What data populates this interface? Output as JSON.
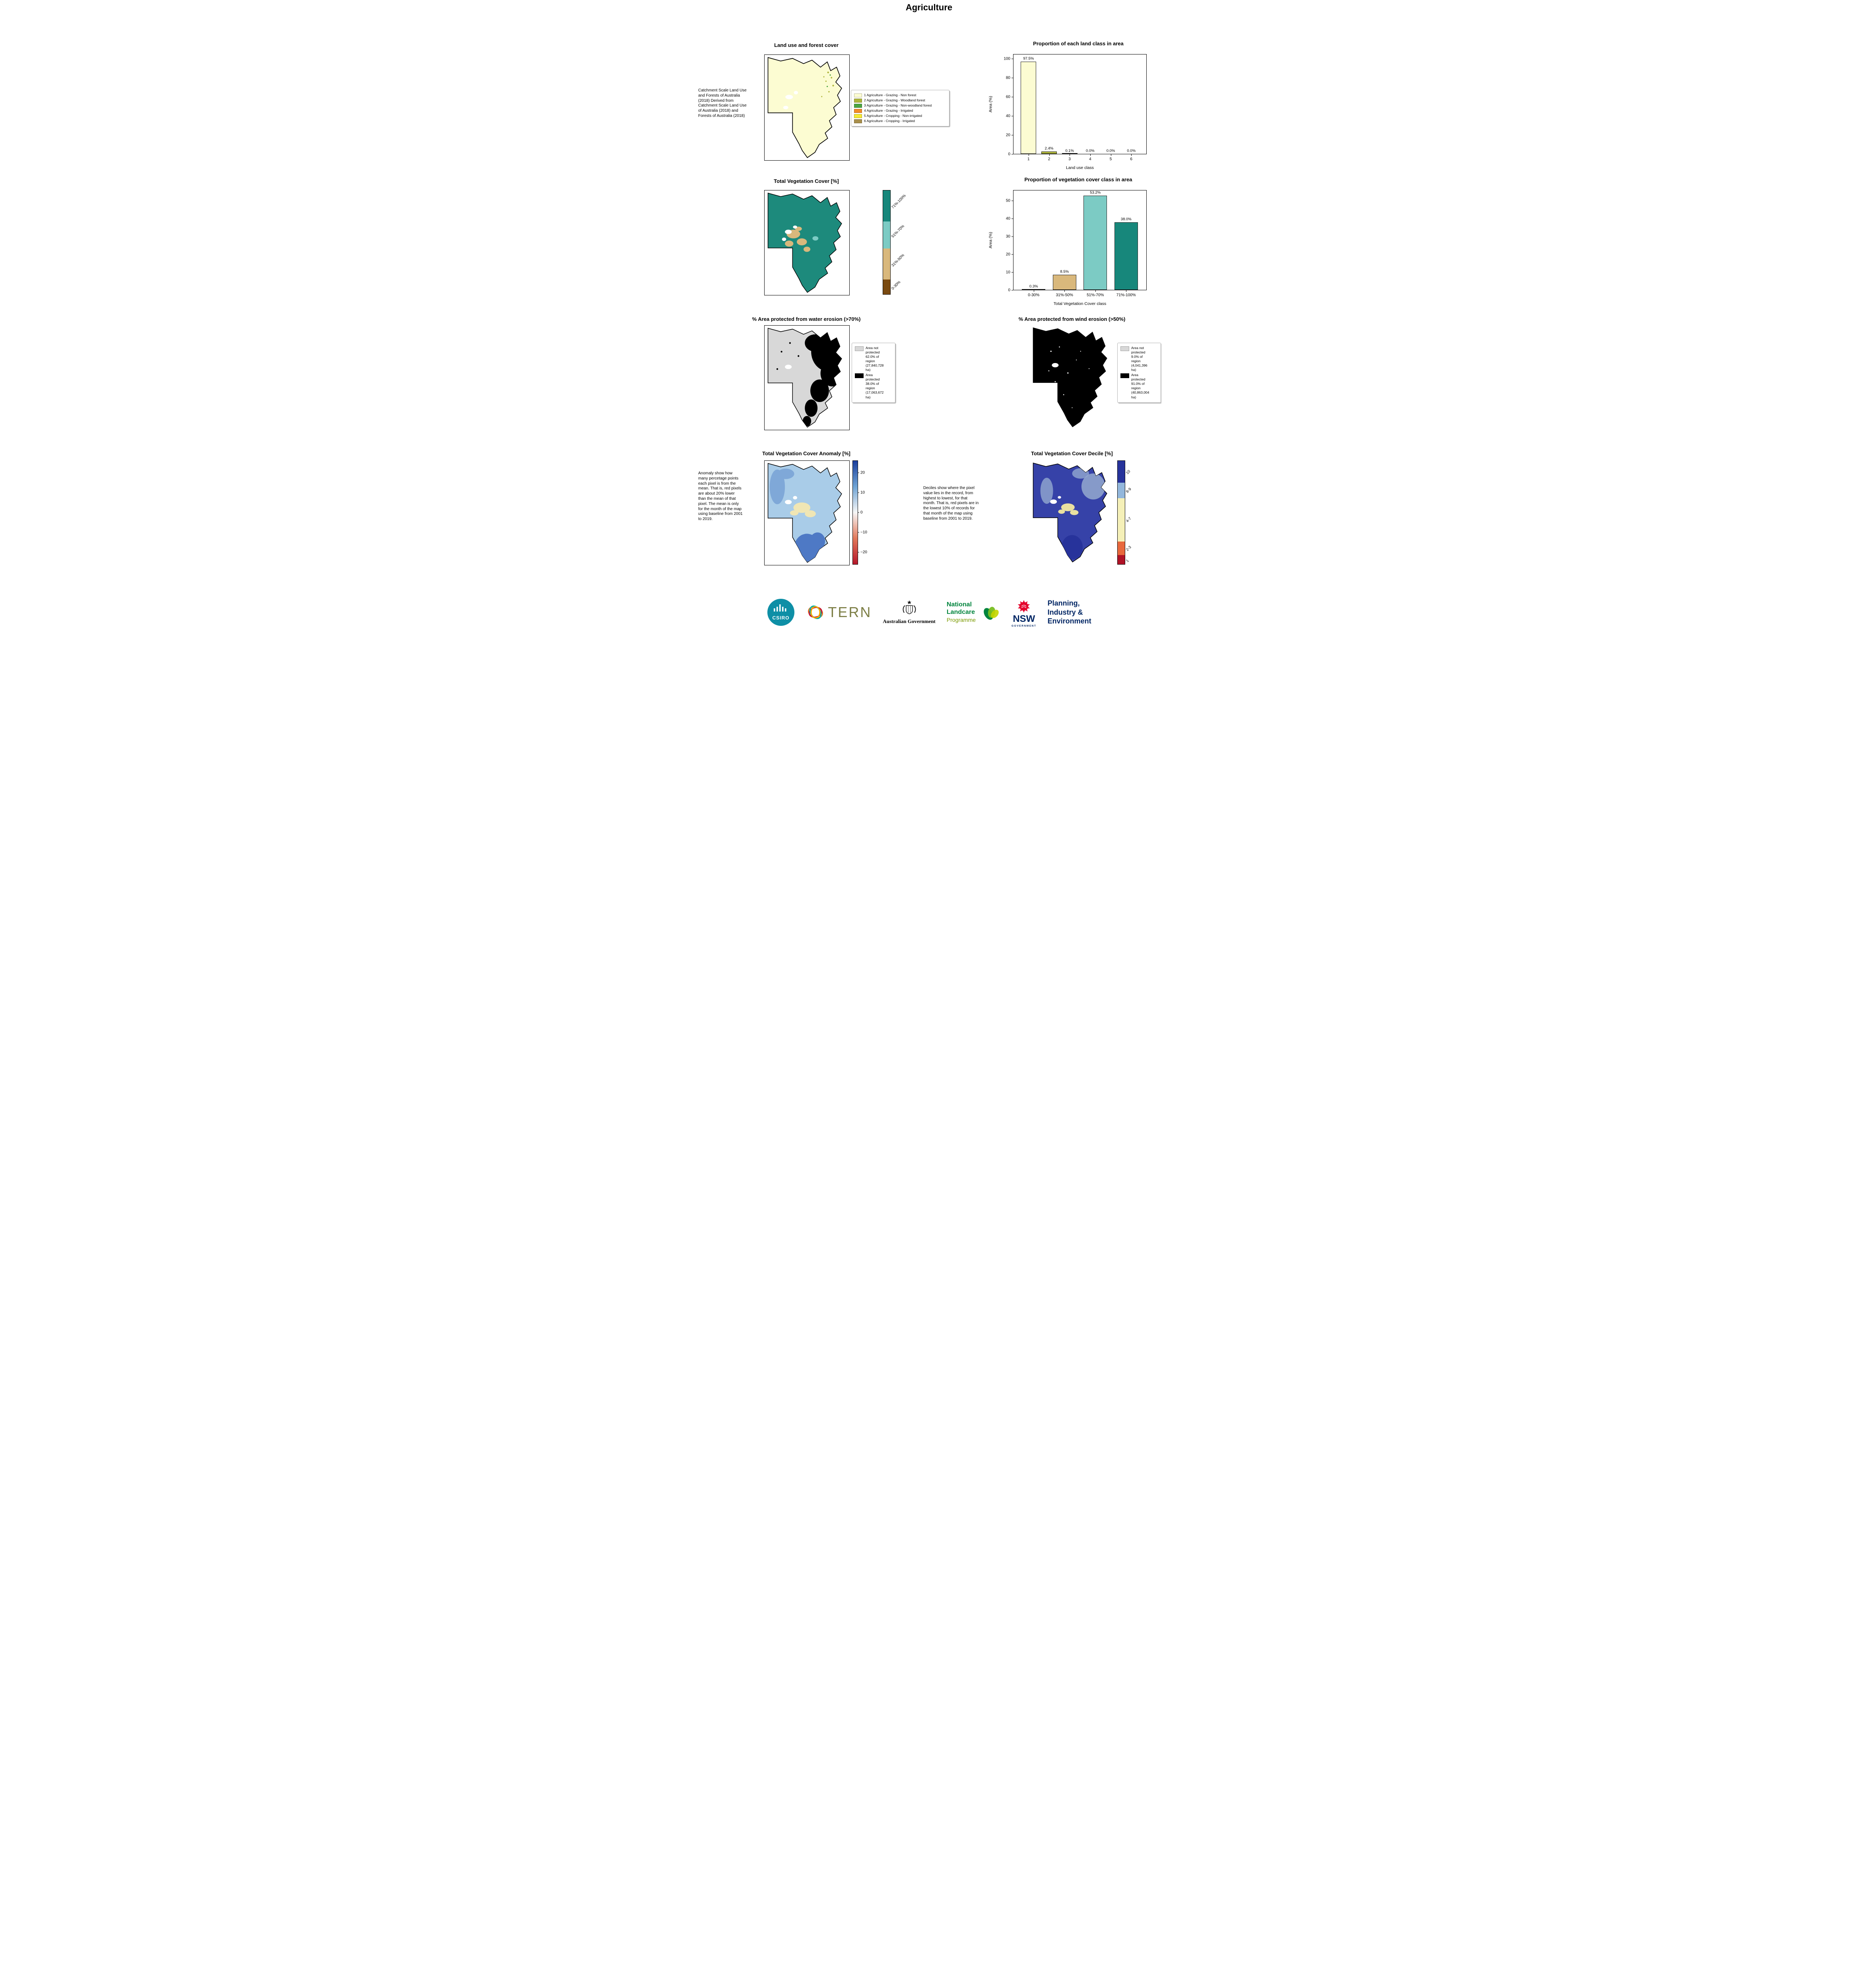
{
  "page": {
    "title": "Agriculture"
  },
  "panels": {
    "land_use_map": {
      "title": "Land use and forest cover",
      "caption": "Catchment Scale Land Use and Forests of Australia (2018) Derived from Catchment Scale Land Use of Australia (2018) and Forests of Australia (2018)",
      "legend": [
        {
          "color": "#FCFCD2",
          "label": "1 Agriculture - Grazing - Non forest"
        },
        {
          "color": "#AFB63C",
          "label": "2 Agriculture - Grazing - Woodland forest"
        },
        {
          "color": "#4CA540",
          "label": "3 Agriculture - Grazing - Non-woodland forest"
        },
        {
          "color": "#F28C28",
          "label": "4 Agriculture - Grazing - Irrigated"
        },
        {
          "color": "#F5E933",
          "label": "5 Agriculture - Cropping - Non-irrigated"
        },
        {
          "color": "#A98F4C",
          "label": "6 Agriculture - Cropping - Irrigated"
        }
      ]
    },
    "veg_cover_map": {
      "title": "Total Vegetation Cover [%]",
      "base_color": "#1D8A7C",
      "colorbar": [
        {
          "color": "#7A4A10",
          "label": "0-30%",
          "size": 14
        },
        {
          "color": "#D9B87C",
          "label": "31%-50%",
          "size": 30
        },
        {
          "color": "#7CCBC4",
          "label": "51%-70%",
          "size": 26
        },
        {
          "color": "#17877B",
          "label": "71%-100%",
          "size": 30
        }
      ]
    },
    "water_erosion_map": {
      "title": "% Area protected from water erosion (>70%)",
      "legend": [
        {
          "color": "#D8D8D8",
          "label": "Area not protected 62.0% of region (27,840,728 ha)"
        },
        {
          "color": "#000000",
          "label": "Area protected 38.0% of region (17,063,672 ha)"
        }
      ]
    },
    "wind_erosion_map": {
      "title": "% Area protected from wind erosion (>50%)",
      "legend": [
        {
          "color": "#D8D8D8",
          "label": "Area not protected 9.0% of region (4,041,396 ha)"
        },
        {
          "color": "#000000",
          "label": "Area protected 91.0% of region (40,863,004 ha)"
        }
      ]
    },
    "anomaly_map": {
      "title": "Total Vegetation Cover Anomaly [%]",
      "caption": "Anomaly show how many percetage points each pixel is from the mean. That is, red pixels are about 20% lower than the mean of that pixel. The mean is only for the month of the map using baseline from 2001 to 2019.",
      "base_color": "#A9CCE8",
      "patch_yellow": "#F0E6B4",
      "patch_blue": "#4E79C5",
      "patch_midblue": "#7FA8D8",
      "colorbar": {
        "gradient": [
          "#1A3E9C",
          "#6FA3D4",
          "#F7F7F7",
          "#E2795B",
          "#B5182B"
        ],
        "range": [
          -26,
          26
        ],
        "ticks": [
          {
            "value": 20,
            "label": "20"
          },
          {
            "value": 10,
            "label": "10"
          },
          {
            "value": 0,
            "label": "0"
          },
          {
            "value": -10,
            "label": "−10"
          },
          {
            "value": -20,
            "label": "−20"
          }
        ]
      }
    },
    "decile_map": {
      "title": "Total Vegetation Cover Decile [%]",
      "caption": "Deciles show where the pixel value lies in the record, from highest to lowest, for that month. That is, red pixels are in the lowest 10% of records for that month of the map using baseline from 2001 to 2019.",
      "base_color": "#3642A8",
      "patch_light": "#94A9CF",
      "patch_yellow": "#E9E0A0",
      "patch_dark": "#27339B",
      "colorbar": [
        {
          "color": "#B01326",
          "label": "1",
          "size": 9
        },
        {
          "color": "#E8683C",
          "label": "2-3",
          "size": 13
        },
        {
          "color": "#F5F0B8",
          "label": "4-7",
          "size": 42
        },
        {
          "color": "#93B7DC",
          "label": "8-9",
          "size": 15
        },
        {
          "color": "#27339B",
          "label": "10",
          "size": 21
        }
      ]
    }
  },
  "chart_data": [
    {
      "type": "bar",
      "title": "Proportion of each land class in area",
      "categories": [
        "1",
        "2",
        "3",
        "4",
        "5",
        "6"
      ],
      "values": [
        97.5,
        2.4,
        0.1,
        0.0,
        0.0,
        0.0
      ],
      "bar_labels": [
        "97.5%",
        "2.4%",
        "0.1%",
        "0.0%",
        "0.0%",
        "0.0%"
      ],
      "colors": [
        "#FCFCD2",
        "#AFB63C",
        "#4CA540",
        "#F28C28",
        "#F5E933",
        "#A98F4C"
      ],
      "xlabel": "Land use class",
      "ylabel": "Area (%)",
      "ylim": [
        0,
        105
      ],
      "yticks": [
        0,
        20,
        40,
        60,
        80,
        100
      ],
      "grid": false,
      "legend_position": "none"
    },
    {
      "type": "bar",
      "title": "Proportion of vegetation cover class in area",
      "categories": [
        "0-30%",
        "31%-50%",
        "51%-70%",
        "71%-100%"
      ],
      "values": [
        0.3,
        8.5,
        53.2,
        38.0
      ],
      "bar_labels": [
        "0.3%",
        "8.5%",
        "53.2%",
        "38.0%"
      ],
      "colors": [
        "#7A4A10",
        "#D9B87C",
        "#7CCBC4",
        "#17877B"
      ],
      "xlabel": "Total Vegetation Cover class",
      "ylabel": "Area (%)",
      "ylim": [
        0,
        56
      ],
      "yticks": [
        0,
        10,
        20,
        30,
        40,
        50
      ],
      "grid": false,
      "legend_position": "none"
    }
  ],
  "logos": {
    "csiro": {
      "text": "CSIRO",
      "color": "#0E8FA6"
    },
    "tern": {
      "text": "TERN",
      "color": "#7C7E45"
    },
    "aus_gov": {
      "text": "Australian Government"
    },
    "landcare": {
      "line1": "National",
      "line2": "Landcare",
      "line3": "Programme",
      "green": "#00843D",
      "light_green": "#7A9A01"
    },
    "nsw": {
      "name": "NSW",
      "sub": "GOVERNMENT",
      "navy": "#002664",
      "red": "#E4002B"
    },
    "pie": {
      "line1": "Planning,",
      "line2": "Industry &",
      "line3": "Environment",
      "color": "#002664"
    }
  }
}
